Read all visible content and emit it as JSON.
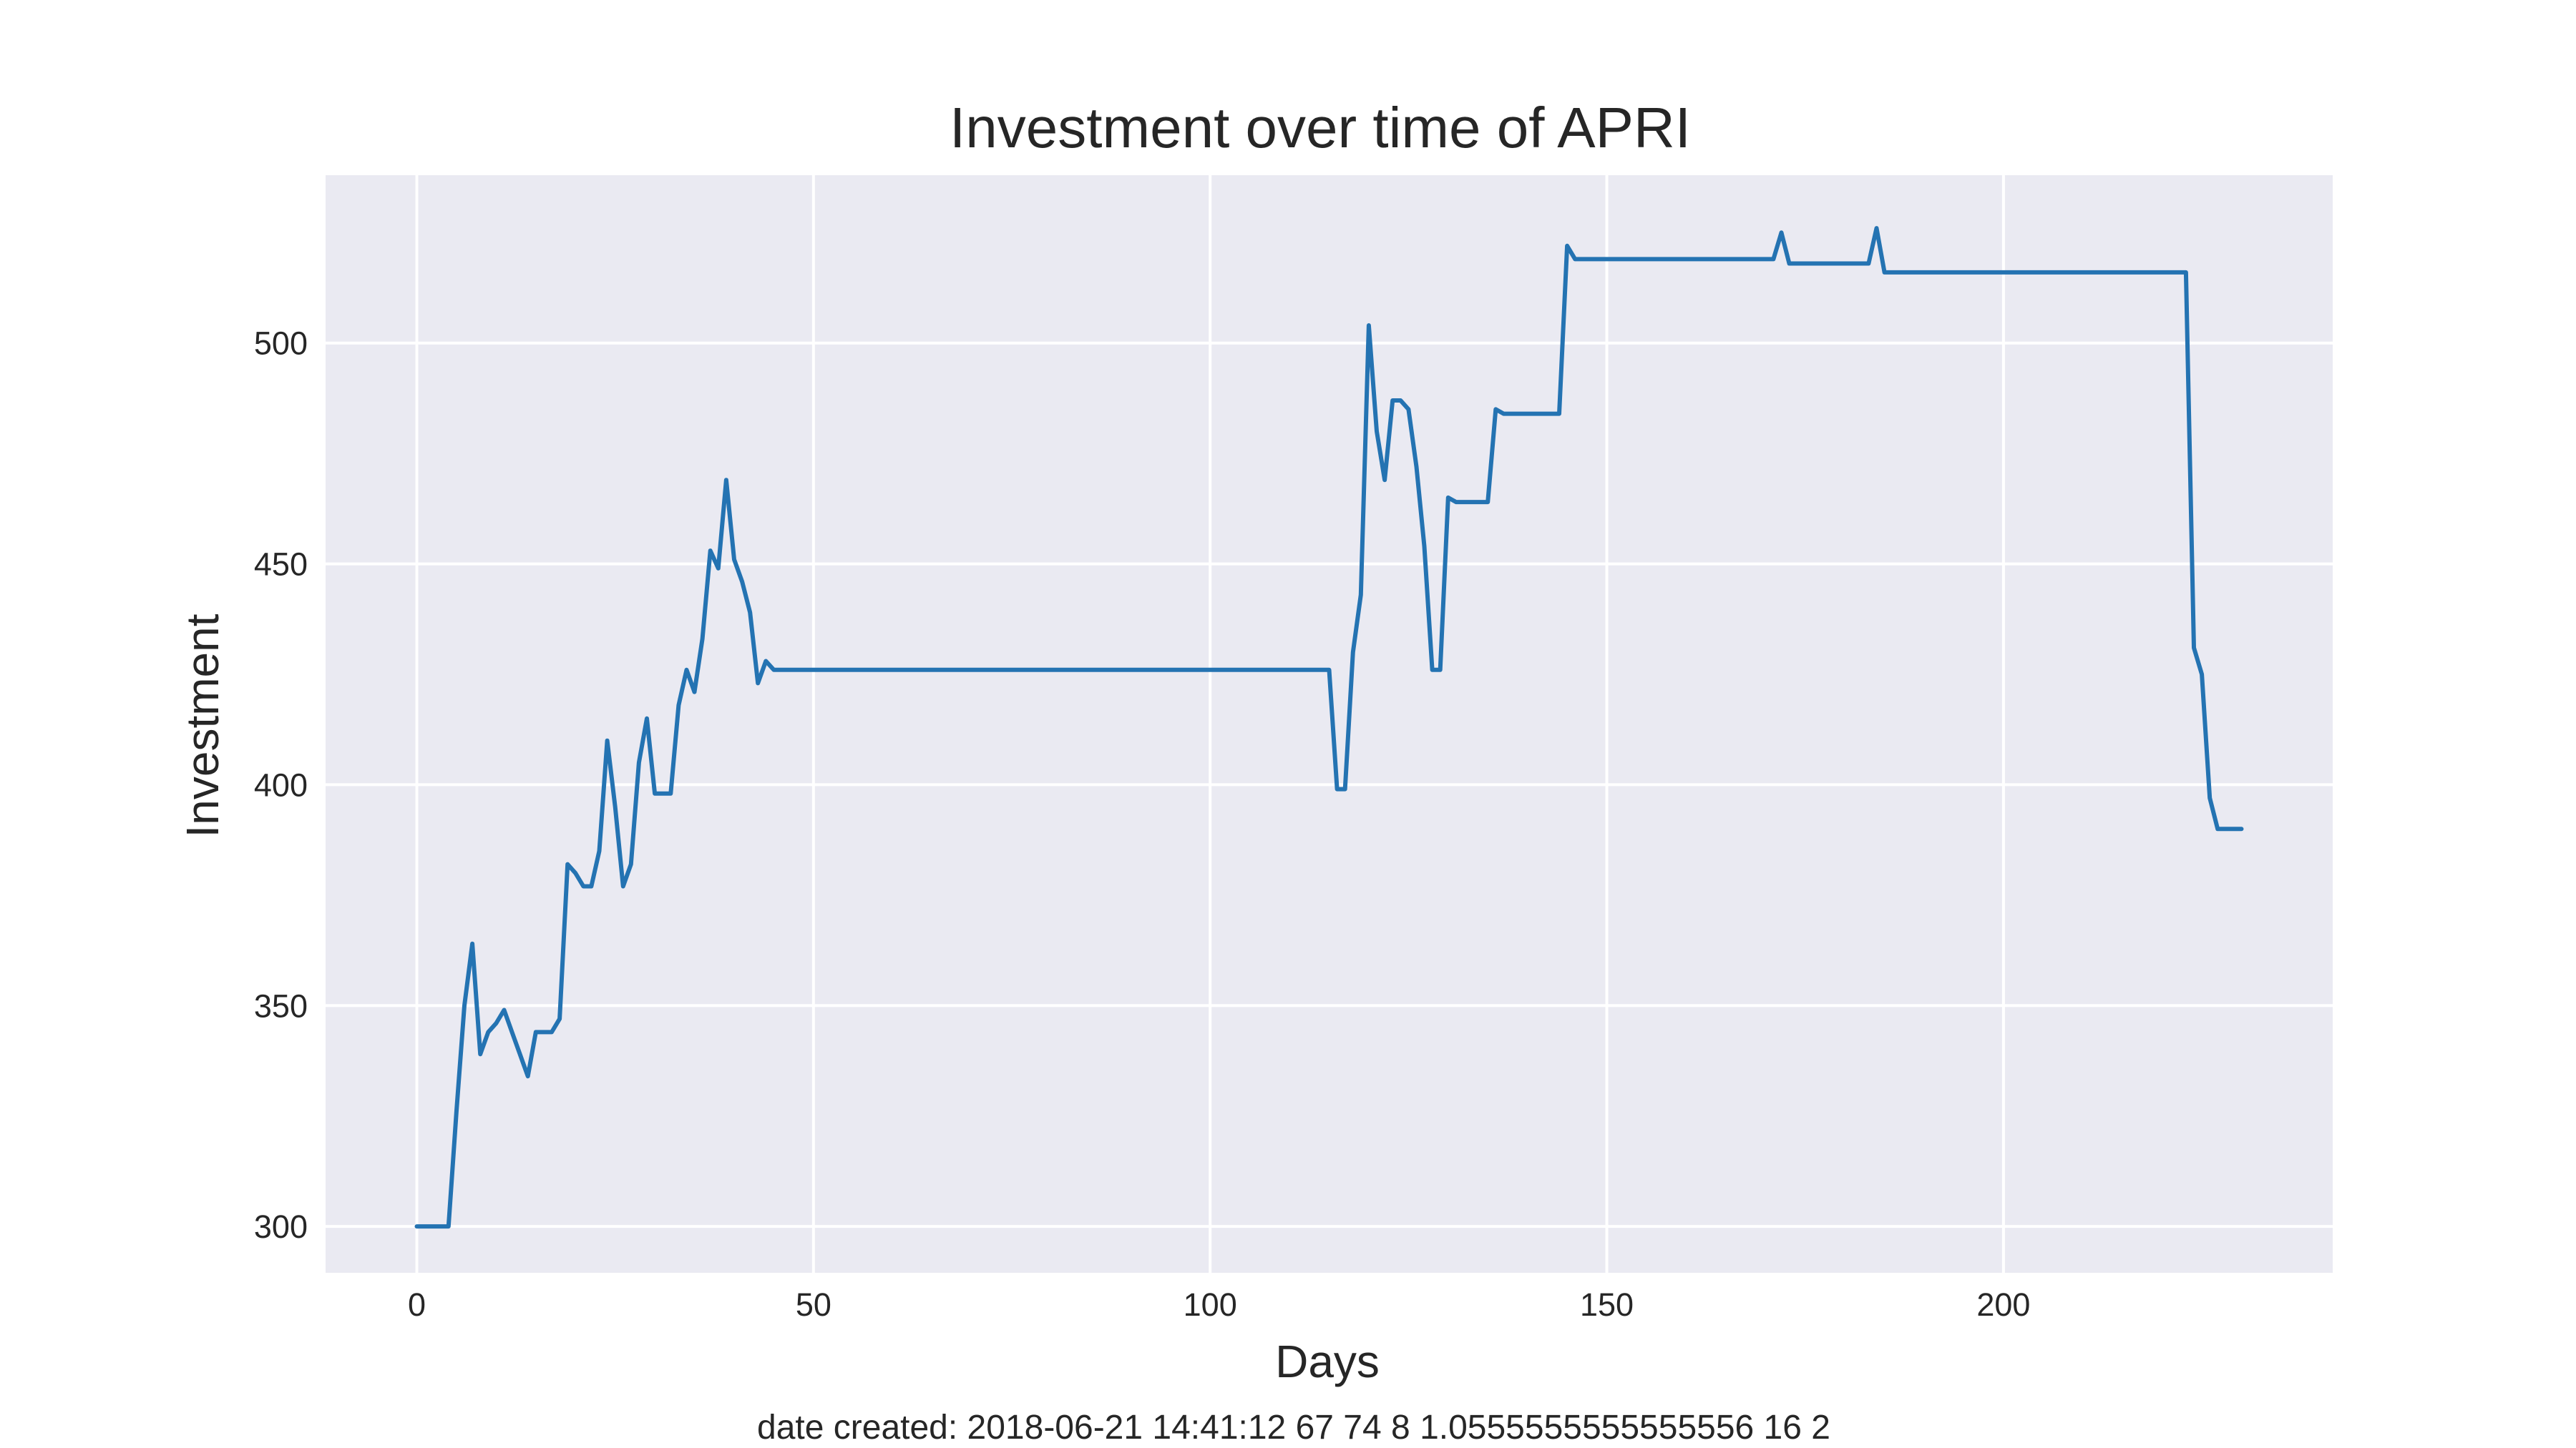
{
  "chart_data": {
    "type": "line",
    "title": "Investment over time of APRI",
    "xlabel": "Days",
    "ylabel": "Investment",
    "xlim": [
      -11.5,
      241.5
    ],
    "ylim": [
      289.5,
      538
    ],
    "x_ticks": [
      0,
      50,
      100,
      150,
      200
    ],
    "y_ticks": [
      300,
      350,
      400,
      450,
      500
    ],
    "grid": true,
    "legend": "none",
    "colors": {
      "background": "#eaeaf2",
      "line": "#2473b2",
      "grid": "#ffffff"
    },
    "footer": "date created: 2018-06-21 14:41:12 67 74 8 1.0555555555555556 16 2",
    "series": [
      {
        "x": [
          0,
          1,
          2,
          3,
          4,
          5,
          6,
          7,
          8,
          9,
          10,
          11,
          12,
          13,
          14,
          15,
          16,
          17,
          18,
          19,
          20,
          21,
          22,
          23,
          24,
          25,
          26,
          27,
          28,
          29,
          30,
          31,
          32,
          33,
          34,
          35,
          36,
          37,
          38,
          39,
          40,
          41,
          42,
          43,
          44,
          45,
          60,
          80,
          100,
          115,
          116,
          117,
          118,
          119,
          120,
          121,
          122,
          123,
          124,
          125,
          126,
          127,
          128,
          129,
          130,
          131,
          132,
          133,
          134,
          135,
          136,
          137,
          138,
          144,
          145,
          146,
          150,
          160,
          171,
          172,
          173,
          175,
          183,
          184,
          185,
          190,
          200,
          210,
          223,
          224,
          225,
          226,
          227,
          228,
          229,
          230
        ],
        "values": [
          300,
          300,
          300,
          300,
          300,
          326,
          350,
          364,
          339,
          344,
          346,
          349,
          344,
          339,
          334,
          344,
          344,
          344,
          347,
          382,
          380,
          377,
          377,
          385,
          410,
          395,
          377,
          382,
          405,
          415,
          398,
          398,
          398,
          418,
          426,
          421,
          433,
          453,
          449,
          469,
          451,
          446,
          439,
          423,
          428,
          426,
          426,
          426,
          426,
          426,
          399,
          399,
          430,
          443,
          504,
          480,
          469,
          487,
          487,
          485,
          472,
          454,
          426,
          426,
          465,
          464,
          464,
          464,
          464,
          464,
          485,
          484,
          484,
          484,
          522,
          519,
          519,
          519,
          519,
          525,
          518,
          518,
          518,
          526,
          516,
          516,
          516,
          516,
          516,
          431,
          425,
          397,
          390,
          390,
          390,
          390
        ]
      }
    ]
  }
}
